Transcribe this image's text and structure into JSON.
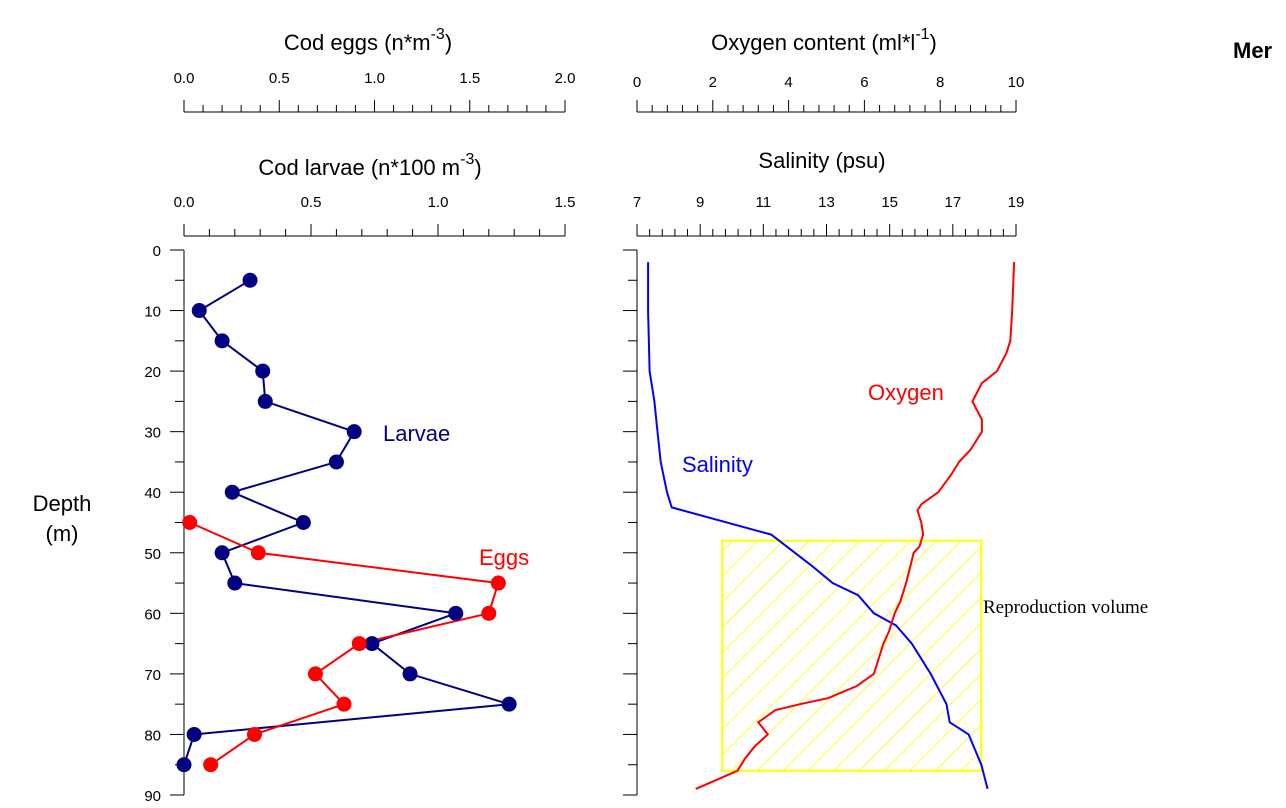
{
  "top_right_label": "Mer",
  "depth_axis": {
    "label_line1": "Depth",
    "label_line2": "(m)",
    "min": 0,
    "max": 90,
    "ticks": [
      "0",
      "10",
      "20",
      "30",
      "40",
      "50",
      "60",
      "70",
      "80",
      "90"
    ],
    "tick_values": [
      0,
      10,
      20,
      30,
      40,
      50,
      60,
      70,
      80,
      90
    ]
  },
  "chart_data": [
    {
      "type": "line",
      "axes": {
        "eggs_axis": {
          "label": "Cod eggs (n*m",
          "label_exp": "-3",
          "label_close": ")",
          "min": 0,
          "max": 2.0,
          "ticks": [
            "0.0",
            "0.5",
            "1.0",
            "1.5",
            "2.0"
          ],
          "tick_values": [
            0,
            0.5,
            1.0,
            1.5,
            2.0
          ]
        },
        "larvae_axis": {
          "label": "Cod larvae (n*100 m",
          "label_exp": "-3",
          "label_close": ")",
          "min": 0,
          "max": 1.5,
          "ticks": [
            "0.0",
            "0.5",
            "1.0",
            "1.5"
          ],
          "tick_values": [
            0,
            0.5,
            1.0,
            1.5
          ]
        }
      },
      "series": [
        {
          "name": "Larvae",
          "axis": "larvae_axis",
          "color": "#000080",
          "x": [
            0.26,
            0.06,
            0.15,
            0.31,
            0.32,
            0.67,
            0.6,
            0.19,
            0.47,
            0.15,
            0.2,
            1.07,
            0.74,
            0.89,
            1.28,
            0.04,
            0.0
          ],
          "y": [
            5,
            10,
            15,
            20,
            25,
            30,
            35,
            40,
            45,
            50,
            55,
            60,
            65,
            70,
            75,
            80,
            85
          ]
        },
        {
          "name": "Eggs",
          "axis": "eggs_axis",
          "color": "#ff0000",
          "x": [
            0.03,
            0.39,
            1.65,
            1.6,
            0.92,
            0.69,
            0.84,
            0.37,
            0.14
          ],
          "y": [
            45,
            50,
            55,
            60,
            65,
            70,
            75,
            80,
            85
          ]
        }
      ]
    },
    {
      "type": "line",
      "axes": {
        "oxygen_axis": {
          "label": "Oxygen content (ml*l",
          "label_exp": "-1",
          "label_close": ")",
          "min": 0,
          "max": 10,
          "ticks": [
            "0",
            "2",
            "4",
            "6",
            "8",
            "10"
          ],
          "tick_values": [
            0,
            2,
            4,
            6,
            8,
            10
          ]
        },
        "salinity_axis": {
          "label": "Salinity (psu)",
          "min": 7,
          "max": 19,
          "ticks": [
            "7",
            "9",
            "11",
            "13",
            "15",
            "17",
            "19"
          ],
          "tick_values": [
            7,
            9,
            11,
            13,
            15,
            17,
            19
          ]
        }
      },
      "series": [
        {
          "name": "Salinity",
          "axis": "salinity_axis",
          "color": "#0000ff",
          "x": [
            7.35,
            7.35,
            7.4,
            7.55,
            7.65,
            7.75,
            7.95,
            8.1,
            11.25,
            12.0,
            12.5,
            13.2,
            14.0,
            14.5,
            15.2,
            15.7,
            16.3,
            16.8,
            16.9,
            17.5,
            17.9,
            18.1
          ],
          "y": [
            2,
            10,
            20,
            25,
            30,
            35,
            40,
            42.5,
            47,
            50,
            52,
            55,
            57,
            60,
            62,
            65,
            70,
            75,
            78,
            80,
            85,
            89
          ]
        },
        {
          "name": "Oxygen",
          "axis": "oxygen_axis",
          "color": "#ff0000",
          "x": [
            9.95,
            9.9,
            9.85,
            9.75,
            9.5,
            9.1,
            8.85,
            9.1,
            9.1,
            8.8,
            8.5,
            8.3,
            7.95,
            7.5,
            7.4,
            7.5,
            7.55,
            7.45,
            7.3,
            7.1,
            6.95,
            6.8,
            6.65,
            6.5,
            6.25,
            5.8,
            5.05,
            4.3,
            3.65,
            3.2,
            3.45,
            3.1,
            2.85,
            2.65,
            1.55
          ],
          "y": [
            2,
            10,
            15,
            17,
            20,
            22,
            25,
            28,
            30,
            33,
            35,
            37,
            40,
            42,
            43,
            45,
            47,
            49,
            50,
            55,
            58,
            60,
            63,
            65,
            70,
            72,
            74,
            75,
            76,
            78,
            80,
            82,
            84,
            86,
            89
          ]
        }
      ],
      "annotations": [
        {
          "label": "Reproduction volume",
          "color": "#ffff00",
          "salinity_range": [
            9.7,
            17.9
          ],
          "depth_range": [
            48,
            86
          ]
        }
      ]
    }
  ]
}
